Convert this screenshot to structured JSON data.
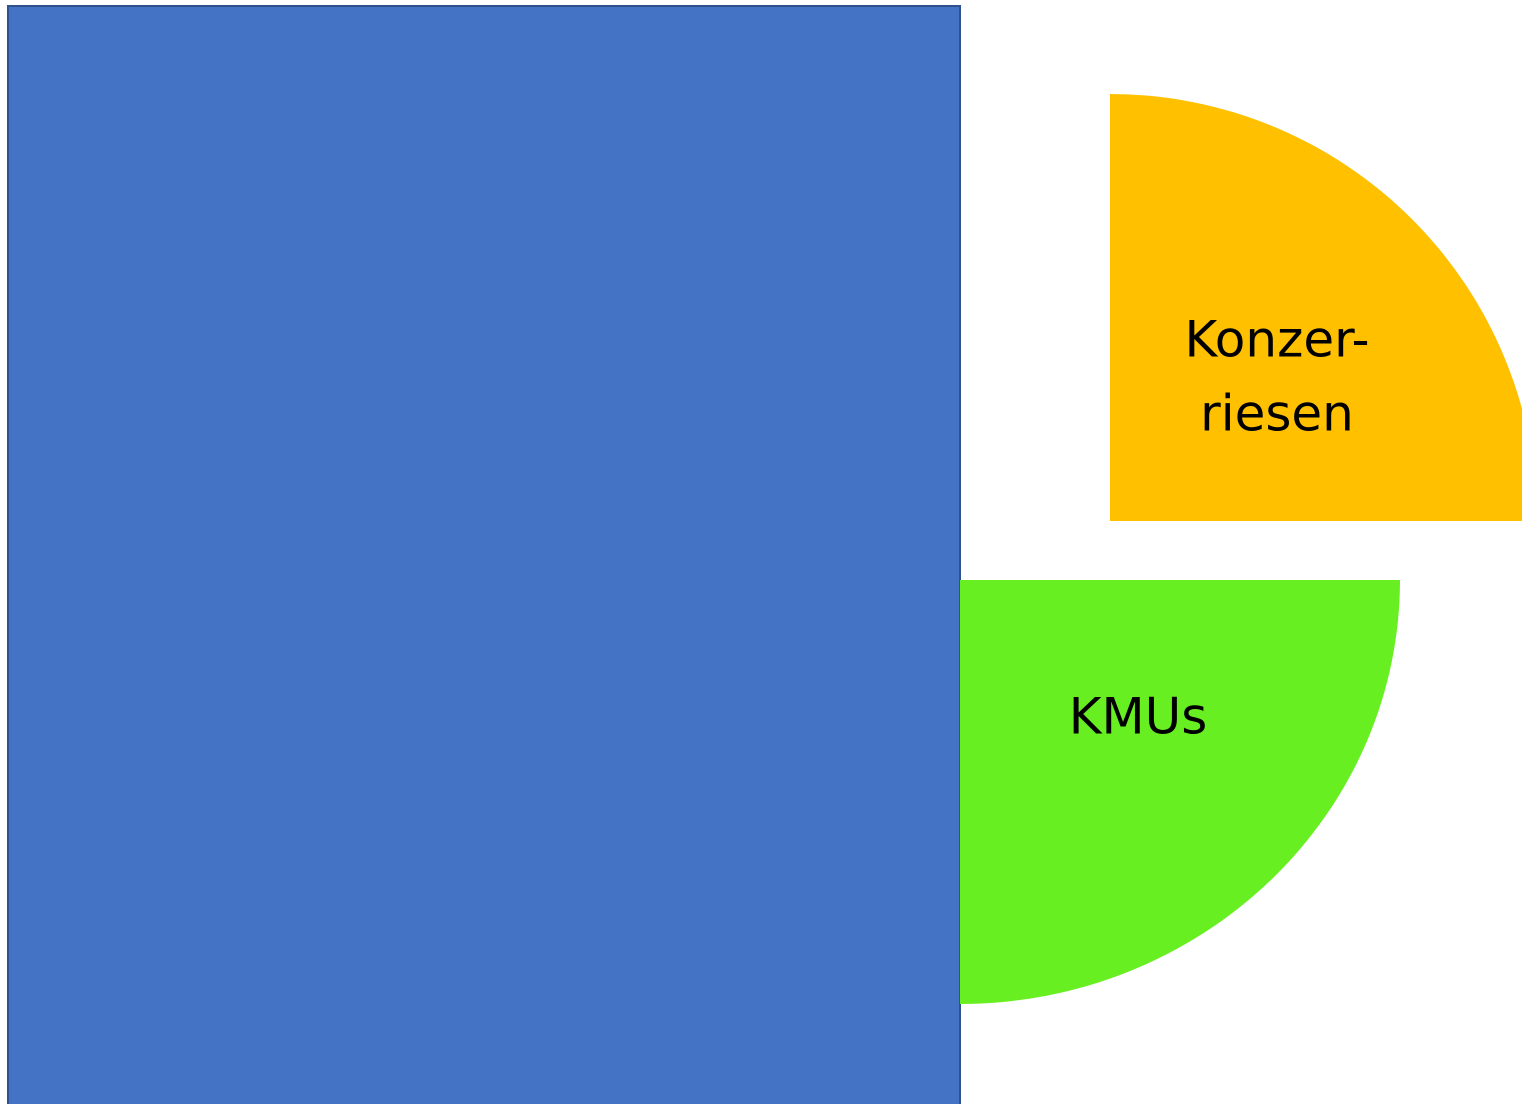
{
  "segments": [
    {
      "lines": [
        "Konzer-",
        "riesen"
      ]
    },
    {
      "lines": [
        "KMUs"
      ]
    }
  ]
}
